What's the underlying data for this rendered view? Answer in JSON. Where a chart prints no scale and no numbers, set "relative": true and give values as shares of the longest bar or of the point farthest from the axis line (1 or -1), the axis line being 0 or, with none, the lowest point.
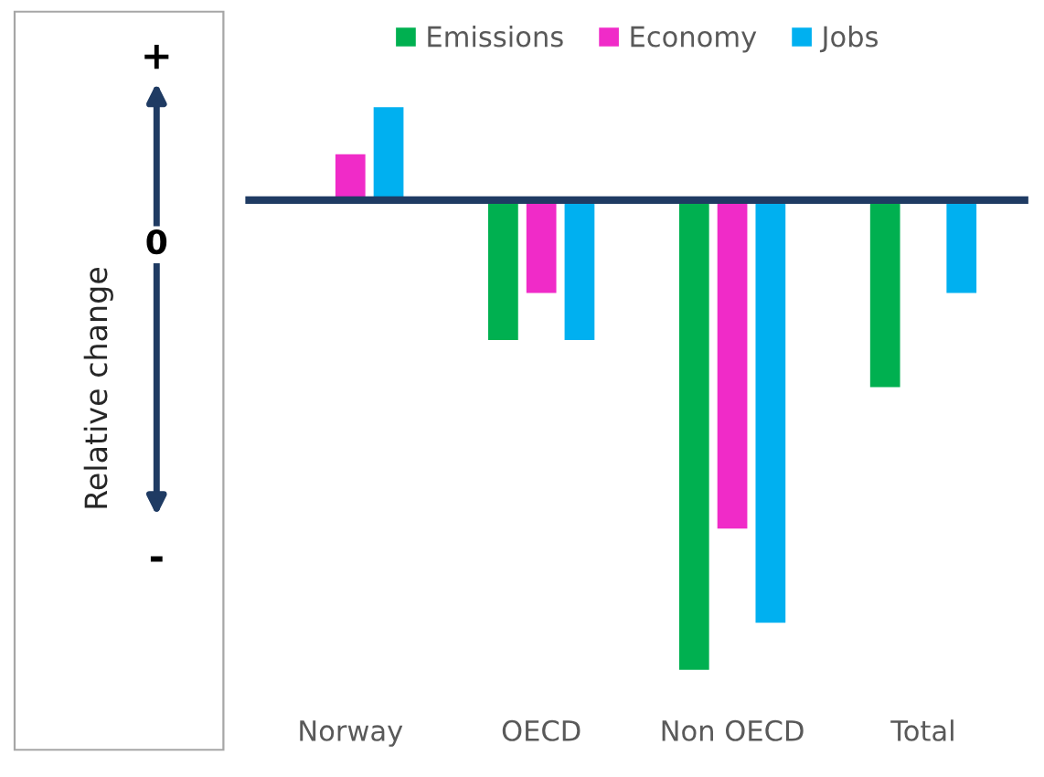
{
  "chart_data": {
    "type": "bar",
    "relative": true,
    "ylabel": "Relative change",
    "categories": [
      "Norway",
      "OECD",
      "Non OECD",
      "Total"
    ],
    "series": [
      {
        "name": "Emissions",
        "color": "#00b050",
        "values": [
          null,
          -0.3,
          -1,
          -0.4
        ]
      },
      {
        "name": "Economy",
        "color": "#f02bc8",
        "values": [
          0.1,
          -0.2,
          -0.7,
          null
        ]
      },
      {
        "name": "Jobs",
        "color": "#00b0f0",
        "values": [
          0.2,
          -0.3,
          -0.9,
          -0.2
        ]
      }
    ],
    "annotations": [
      "+",
      "0",
      "-"
    ],
    "legend": "top"
  }
}
